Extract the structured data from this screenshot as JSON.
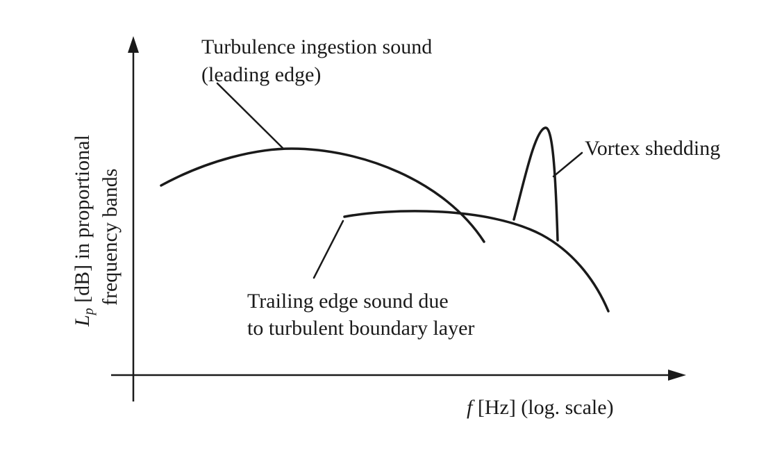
{
  "axes": {
    "y_label_symbol": "L",
    "y_label_subscript": "p",
    "y_label_rest": " [dB] in proportional",
    "y_label_line2": "frequency bands",
    "x_label_symbol": "f",
    "x_label_rest": " [Hz] (log. scale)"
  },
  "curves": {
    "turbulence_ingestion": {
      "label_line1": "Turbulence ingestion sound",
      "label_line2": "(leading edge)"
    },
    "trailing_edge": {
      "label_line1": "Trailing edge sound due",
      "label_line2": "to turbulent boundary layer"
    },
    "vortex_shedding": {
      "label": "Vortex shedding"
    }
  }
}
